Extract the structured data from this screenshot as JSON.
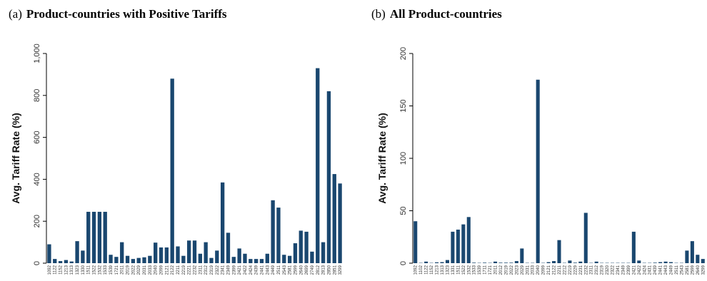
{
  "chart_data": [
    {
      "type": "bar",
      "panel": "(a)",
      "title": "Product-countries with Positive Tariffs",
      "ylabel": "Avg. Tariff Rate (%)",
      "color": "#1a476f",
      "categories": [
        "1092",
        "1122",
        "1152",
        "1213",
        "1313",
        "1323",
        "1330",
        "1511",
        "1522",
        "1532",
        "1533",
        "1539",
        "1721",
        "2011",
        "2019",
        "2022",
        "2029",
        "2031",
        "2033",
        "2040",
        "2099",
        "2121",
        "2122",
        "2211",
        "2219",
        "2221",
        "2232",
        "2311",
        "2312",
        "2319",
        "2322",
        "2341",
        "2349",
        "2399",
        "2421",
        "2422",
        "2424",
        "2439",
        "2441",
        "2443",
        "2449",
        "2511",
        "2543",
        "2581",
        "2599",
        "2640",
        "2699",
        "2749",
        "2812",
        "2813",
        "2850",
        "2851",
        "3299"
      ],
      "values": [
        90,
        20,
        10,
        15,
        8,
        105,
        60,
        245,
        245,
        245,
        245,
        40,
        30,
        100,
        35,
        20,
        25,
        28,
        35,
        98,
        75,
        75,
        880,
        80,
        35,
        108,
        108,
        45,
        100,
        25,
        60,
        385,
        145,
        30,
        70,
        45,
        20,
        20,
        20,
        45,
        300,
        265,
        40,
        35,
        95,
        155,
        150,
        55,
        930,
        100,
        820,
        425,
        380
      ],
      "ylim": [
        0,
        1000
      ],
      "yticks": [
        0,
        200,
        400,
        600,
        800,
        {
          "value": 1000,
          "label": "1,000"
        }
      ]
    },
    {
      "type": "bar",
      "panel": "(b)",
      "title": "All Product-countries",
      "ylabel": "Avg. Tariff Rate (%)",
      "color": "#1a476f",
      "categories": [
        "1092",
        "1102",
        "1122",
        "1152",
        "1213",
        "1313",
        "1323",
        "1331",
        "1511",
        "1522",
        "1532",
        "1533",
        "1539",
        "1711",
        "1721",
        "2011",
        "2012",
        "2019",
        "2022",
        "2023",
        "2029",
        "2031",
        "2033",
        "2040",
        "2099",
        "2121",
        "2122",
        "2211",
        "2212",
        "2219",
        "2229",
        "2231",
        "2232",
        "2311",
        "2312",
        "2319",
        "2320",
        "2322",
        "2341",
        "2349",
        "2399",
        "2421",
        "2422",
        "2424",
        "2431",
        "2439",
        "2441",
        "2443",
        "2449",
        "2511",
        "2543",
        "2581",
        "2599",
        "2640",
        "3299"
      ],
      "values": [
        40,
        0.3,
        1.5,
        0.3,
        0.8,
        1,
        3,
        30,
        32,
        37,
        44,
        0.5,
        0.3,
        0.5,
        0.3,
        1.5,
        0.5,
        0.5,
        0.5,
        2,
        14,
        0.3,
        0.3,
        175,
        0.3,
        1,
        2,
        22,
        0.3,
        2.5,
        0.5,
        1.5,
        48,
        0.3,
        1.5,
        0.3,
        0.3,
        0.3,
        0.3,
        0.3,
        0.3,
        30,
        2.5,
        0.3,
        0.3,
        0.5,
        1,
        1.5,
        1,
        0.3,
        0.3,
        12,
        21,
        8,
        4
      ],
      "ylim": [
        0,
        200
      ],
      "yticks": [
        0,
        50,
        100,
        150,
        200
      ]
    }
  ]
}
